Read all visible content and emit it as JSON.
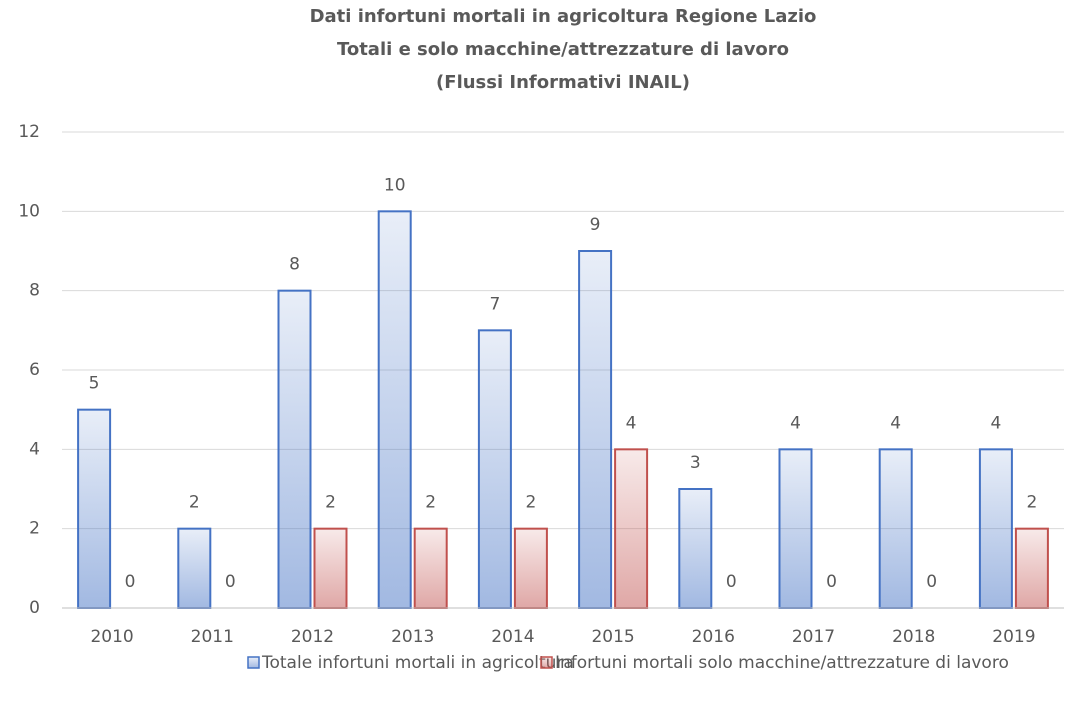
{
  "chart_data": {
    "type": "bar",
    "title": [
      "Dati infortuni mortali in agricoltura Regione Lazio",
      "Totali e solo macchine/attrezzature di lavoro",
      "(Flussi Informativi INAIL)"
    ],
    "categories": [
      "2010",
      "2011",
      "2012",
      "2013",
      "2014",
      "2015",
      "2016",
      "2017",
      "2018",
      "2019"
    ],
    "series": [
      {
        "name": "Totale infortuni mortali in agricoltura",
        "color": "#4472c4",
        "values": [
          5,
          2,
          8,
          10,
          7,
          9,
          3,
          4,
          4,
          4
        ]
      },
      {
        "name": "Infortuni mortali solo macchine/attrezzature di lavoro",
        "color": "#c0504d",
        "values": [
          0,
          0,
          2,
          2,
          2,
          4,
          0,
          0,
          0,
          2
        ]
      }
    ],
    "ylim": [
      0,
      12
    ],
    "yticks": [
      0,
      2,
      4,
      6,
      8,
      10,
      12
    ],
    "grid": true,
    "legend": "bottom"
  }
}
